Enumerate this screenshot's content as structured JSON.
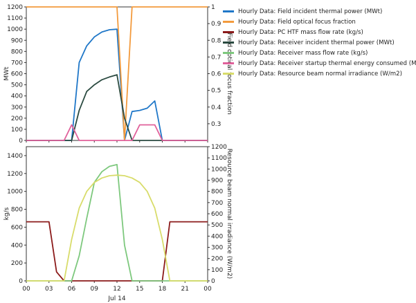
{
  "legend": [
    {
      "label": "Hourly Data: Field incident thermal power (MWt)",
      "color": "#1f77c8"
    },
    {
      "label": "Hourly Data: Field optical focus fraction",
      "color": "#f39a3c"
    },
    {
      "label": "Hourly Data: PC HTF mass flow rate (kg/s)",
      "color": "#8b1a1a"
    },
    {
      "label": "Hourly Data: Receiver incident thermal power (MWt)",
      "color": "#2a4a40"
    },
    {
      "label": "Hourly Data: Receiver mass flow rate (kg/s)",
      "color": "#7dc87d"
    },
    {
      "label": "Hourly Data: Receiver startup thermal energy consumed (MWt)",
      "color": "#e0609a"
    },
    {
      "label": "Hourly Data: Resource beam normal irradiance (W/m2)",
      "color": "#d8dc6a"
    }
  ],
  "chart_data": [
    {
      "type": "line",
      "ylabel": "MWt",
      "y2label": "Field optical focus fraction",
      "ylim": [
        0,
        1200
      ],
      "y2lim": [
        0.2,
        1.0
      ],
      "yticks": [
        "0",
        "100",
        "200",
        "300",
        "400",
        "500",
        "600",
        "700",
        "800",
        "900",
        "1000",
        "1100",
        "1200"
      ],
      "y2ticks": [
        "0.3",
        "0.4",
        "0.5",
        "0.6",
        "0.7",
        "0.8",
        "0.9",
        "1"
      ],
      "x": [
        0,
        1,
        2,
        3,
        4,
        5,
        6,
        7,
        8,
        9,
        10,
        11,
        12,
        13,
        14,
        15,
        16,
        17,
        18,
        19,
        20,
        21,
        22,
        23,
        24
      ],
      "series": [
        {
          "name": "Hourly Data: Field incident thermal power (MWt)",
          "axis": "left",
          "color": "#1f77c8",
          "values": [
            0,
            0,
            0,
            0,
            0,
            0,
            0,
            700,
            850,
            930,
            975,
            995,
            1000,
            0,
            260,
            270,
            290,
            355,
            0,
            0,
            0,
            0,
            0,
            0,
            0
          ]
        },
        {
          "name": "Hourly Data: Field optical focus fraction",
          "axis": "right",
          "color": "#f39a3c",
          "values": [
            1,
            1,
            1,
            1,
            1,
            1,
            1,
            1,
            1,
            1,
            1,
            1,
            1,
            0.2,
            1,
            1,
            1,
            1,
            1,
            1,
            1,
            1,
            1,
            1,
            1
          ]
        },
        {
          "name": "Hourly Data: Receiver incident thermal power (MWt)",
          "axis": "left",
          "color": "#2a4a40",
          "values": [
            0,
            0,
            0,
            0,
            0,
            0,
            0,
            270,
            440,
            500,
            545,
            570,
            590,
            200,
            0,
            0,
            0,
            0,
            0,
            0,
            0,
            0,
            0,
            0,
            0
          ]
        },
        {
          "name": "Hourly Data: Receiver startup thermal energy consumed (MWt)",
          "axis": "left",
          "color": "#e0609a",
          "values": [
            0,
            0,
            0,
            0,
            0,
            0,
            140,
            0,
            0,
            0,
            0,
            0,
            0,
            0,
            0,
            140,
            140,
            140,
            0,
            0,
            0,
            0,
            0,
            0,
            0
          ]
        }
      ]
    },
    {
      "type": "line",
      "ylabel": "kg/s",
      "y2label": "Resource beam normal irradiance (W/m2)",
      "xlabel": "Jul 14",
      "ylim": [
        0,
        1500
      ],
      "y2lim": [
        0,
        1200
      ],
      "yticks": [
        "0",
        "200",
        "400",
        "600",
        "800",
        "1000",
        "1200",
        "1400"
      ],
      "y2ticks": [
        "0",
        "100",
        "200",
        "300",
        "400",
        "500",
        "600",
        "700",
        "800",
        "900",
        "1000",
        "1100",
        "1200"
      ],
      "xticks": [
        "00",
        "03",
        "06",
        "09",
        "12",
        "15",
        "18",
        "21",
        "00"
      ],
      "x": [
        0,
        1,
        2,
        3,
        4,
        5,
        6,
        7,
        8,
        9,
        10,
        11,
        12,
        13,
        14,
        15,
        16,
        17,
        18,
        19,
        20,
        21,
        22,
        23,
        24
      ],
      "series": [
        {
          "name": "Hourly Data: PC HTF mass flow rate (kg/s)",
          "axis": "left",
          "color": "#8b1a1a",
          "values": [
            660,
            660,
            660,
            660,
            100,
            0,
            0,
            0,
            0,
            0,
            0,
            0,
            0,
            0,
            0,
            0,
            0,
            0,
            0,
            660,
            660,
            660,
            660,
            660,
            660
          ]
        },
        {
          "name": "Hourly Data: Receiver mass flow rate (kg/s)",
          "axis": "left",
          "color": "#7dc87d",
          "values": [
            0,
            0,
            0,
            0,
            0,
            0,
            0,
            280,
            700,
            1100,
            1220,
            1280,
            1300,
            400,
            0,
            0,
            0,
            0,
            0,
            0,
            0,
            0,
            0,
            0,
            0
          ]
        },
        {
          "name": "Hourly Data: Resource beam normal irradiance (W/m2)",
          "axis": "right",
          "color": "#d8dc6a",
          "values": [
            0,
            0,
            0,
            0,
            0,
            0,
            370,
            650,
            800,
            880,
            920,
            940,
            945,
            940,
            920,
            880,
            800,
            650,
            370,
            0,
            0,
            0,
            0,
            0,
            0
          ]
        }
      ]
    }
  ]
}
